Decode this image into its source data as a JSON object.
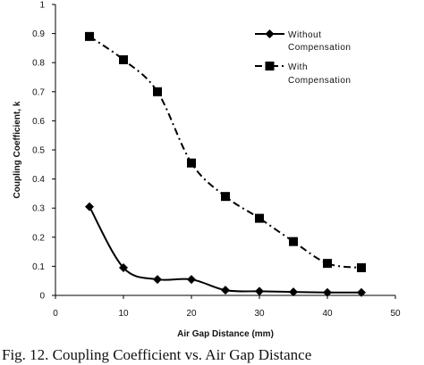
{
  "caption": "Fig. 12. Coupling Coefficient vs. Air Gap Distance",
  "chart_data": {
    "type": "line",
    "title": "",
    "xlabel": "Air Gap Distance (mm)",
    "ylabel": "Coupling Coefficient, k",
    "xlim": [
      0,
      50
    ],
    "ylim": [
      0,
      1
    ],
    "xticks": [
      0,
      10,
      20,
      30,
      40,
      50
    ],
    "yticks": [
      0,
      0.1,
      0.2,
      0.3,
      0.4,
      0.5,
      0.6,
      0.7,
      0.8,
      0.9,
      1
    ],
    "grid": false,
    "legend_position": "top-right",
    "series": [
      {
        "name_lines": [
          "Without",
          "Compensation"
        ],
        "marker": "diamond",
        "line_style": "solid",
        "color": "#000000",
        "x": [
          5,
          10,
          15,
          20,
          25,
          30,
          35,
          40,
          45
        ],
        "y": [
          0.305,
          0.095,
          0.055,
          0.055,
          0.018,
          0.014,
          0.012,
          0.01,
          0.01
        ]
      },
      {
        "name_lines": [
          "With",
          "Compensation"
        ],
        "marker": "square",
        "line_style": "dash-dot",
        "color": "#000000",
        "x": [
          5,
          10,
          15,
          20,
          25,
          30,
          35,
          40,
          45
        ],
        "y": [
          0.89,
          0.81,
          0.7,
          0.455,
          0.34,
          0.265,
          0.185,
          0.11,
          0.095
        ]
      }
    ]
  }
}
